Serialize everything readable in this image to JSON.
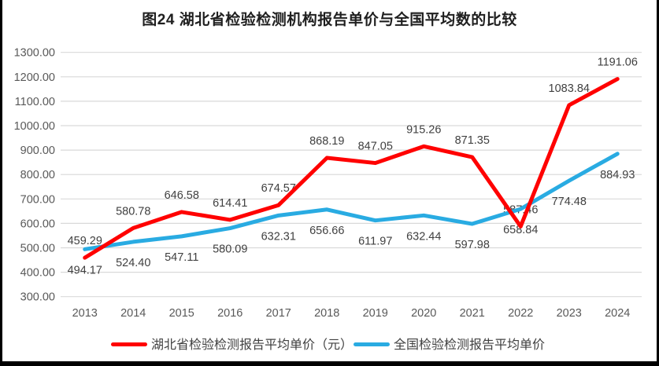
{
  "frame": {
    "background": "#ffffff",
    "border_color": "#000000"
  },
  "chart_data": {
    "type": "line",
    "title": "图24 湖北省检验检测机构报告单价与全国平均数的比较",
    "categories": [
      "2013",
      "2014",
      "2015",
      "2016",
      "2017",
      "2018",
      "2019",
      "2020",
      "2021",
      "2022",
      "2023",
      "2024"
    ],
    "series": [
      {
        "name": "湖北省检验检测报告平均单价（元）",
        "color": "#ff0000",
        "label_position": "above",
        "values": [
          459.29,
          580.78,
          646.58,
          614.41,
          674.57,
          868.19,
          847.05,
          915.26,
          871.35,
          587.46,
          1083.84,
          1191.06
        ]
      },
      {
        "name": "全国检验检测报告平均单价",
        "color": "#29abe2",
        "label_position": "below",
        "values": [
          494.17,
          524.4,
          547.11,
          580.09,
          632.31,
          656.66,
          611.97,
          632.44,
          597.98,
          658.84,
          774.48,
          884.93
        ]
      }
    ],
    "ylim": [
      300,
      1300
    ],
    "ytick_step": 100,
    "ytick_labels": [
      "300.00",
      "400.00",
      "500.00",
      "600.00",
      "700.00",
      "800.00",
      "900.00",
      "1000.00",
      "1100.00",
      "1200.00",
      "1300.00"
    ],
    "grid": true,
    "legend_position": "bottom",
    "styles": {
      "gridline_color": "#d9d9d9",
      "axis_label_color": "#595959",
      "data_label_color": "#404040",
      "legend_label_color": "#404040",
      "title_color": "#1f1f1f"
    }
  }
}
